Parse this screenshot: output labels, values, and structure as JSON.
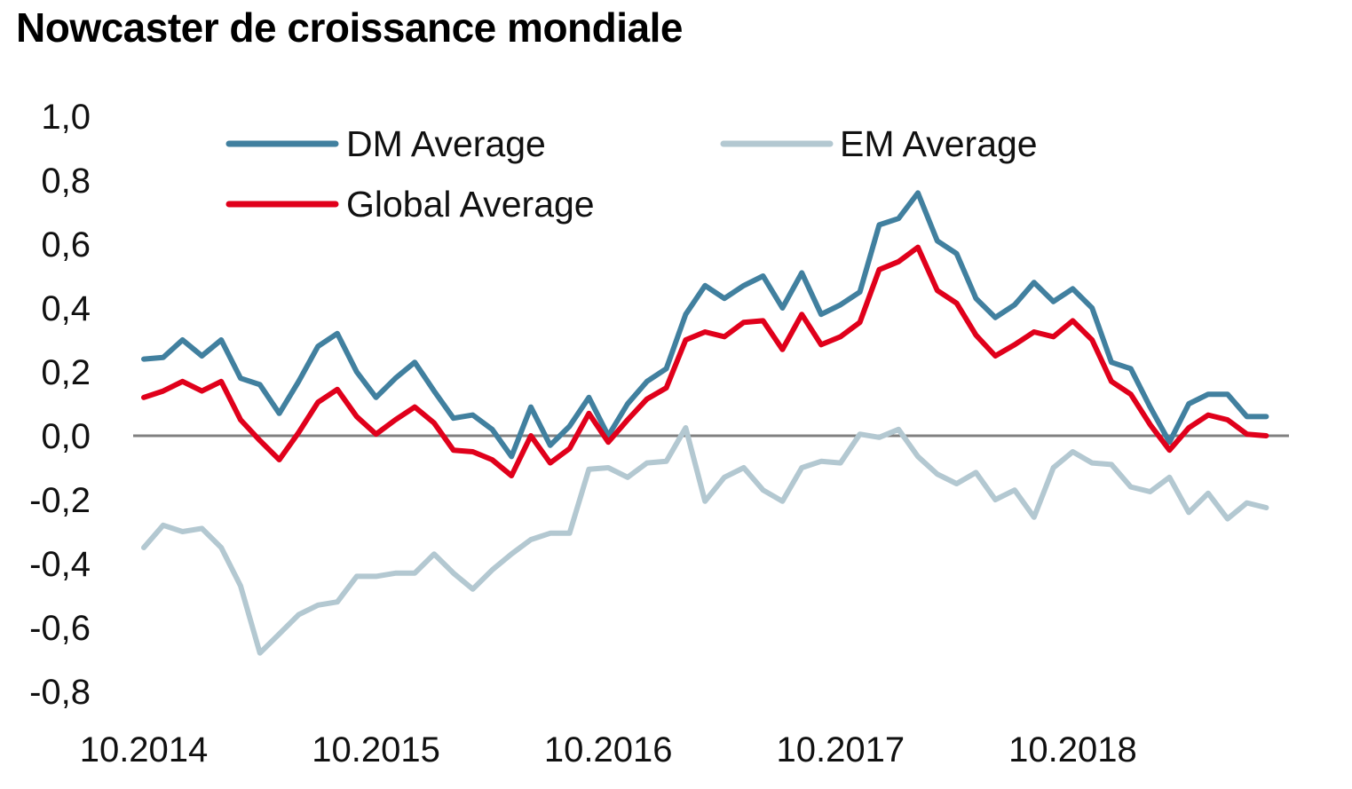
{
  "chart_data": {
    "type": "line",
    "title": "Nowcaster de croissance mondiale",
    "xlabel": "",
    "ylabel": "",
    "ylim": [
      -0.8,
      1.0
    ],
    "y_ticks": [
      "1,0",
      "0,8",
      "0,6",
      "0,4",
      "0,2",
      "0,0",
      "-0,2",
      "-0,4",
      "-0,6",
      "-0,8"
    ],
    "y_tick_values": [
      1.0,
      0.8,
      0.6,
      0.4,
      0.2,
      0.0,
      -0.2,
      -0.4,
      -0.6,
      -0.8
    ],
    "x_tick_labels": [
      "10.2014",
      "10.2015",
      "10.2016",
      "10.2017",
      "10.2018"
    ],
    "x_tick_months": [
      0,
      12,
      24,
      36,
      48
    ],
    "x_start": "10.2014",
    "grid": false,
    "zero_line": true,
    "legend_position": "top",
    "colors": {
      "dm": "#41809f",
      "em": "#b3c8d1",
      "global": "#e0001b",
      "zero_line": "#808080"
    },
    "series": [
      {
        "name": "DM Average",
        "color": "#41809f",
        "values": [
          0.24,
          0.245,
          0.3,
          0.25,
          0.3,
          0.18,
          0.16,
          0.07,
          0.17,
          0.28,
          0.32,
          0.2,
          0.12,
          0.18,
          0.23,
          0.14,
          0.055,
          0.065,
          0.02,
          -0.065,
          0.09,
          -0.03,
          0.03,
          0.12,
          0.0,
          0.1,
          0.17,
          0.21,
          0.38,
          0.47,
          0.43,
          0.47,
          0.5,
          0.4,
          0.51,
          0.38,
          0.41,
          0.45,
          0.66,
          0.68,
          0.76,
          0.61,
          0.57,
          0.43,
          0.37,
          0.41,
          0.48,
          0.42,
          0.46,
          0.4,
          0.23,
          0.21,
          0.09,
          -0.02,
          0.1,
          0.13,
          0.13,
          0.06,
          0.06
        ]
      },
      {
        "name": "EM Average",
        "color": "#b3c8d1",
        "values": [
          -0.35,
          -0.28,
          -0.3,
          -0.29,
          -0.35,
          -0.47,
          -0.68,
          -0.62,
          -0.56,
          -0.53,
          -0.52,
          -0.44,
          -0.44,
          -0.43,
          -0.43,
          -0.37,
          -0.43,
          -0.48,
          -0.42,
          -0.37,
          -0.325,
          -0.305,
          -0.305,
          -0.105,
          -0.1,
          -0.13,
          -0.085,
          -0.08,
          0.025,
          -0.205,
          -0.13,
          -0.1,
          -0.17,
          -0.205,
          -0.1,
          -0.08,
          -0.085,
          0.005,
          -0.005,
          0.02,
          -0.065,
          -0.12,
          -0.15,
          -0.115,
          -0.2,
          -0.17,
          -0.255,
          -0.1,
          -0.05,
          -0.085,
          -0.09,
          -0.16,
          -0.175,
          -0.13,
          -0.24,
          -0.18,
          -0.26,
          -0.21,
          -0.225
        ]
      },
      {
        "name": "Global Average",
        "color": "#e0001b",
        "values": [
          0.12,
          0.14,
          0.17,
          0.14,
          0.17,
          0.05,
          -0.015,
          -0.075,
          0.01,
          0.105,
          0.145,
          0.06,
          0.005,
          0.05,
          0.09,
          0.04,
          -0.045,
          -0.05,
          -0.075,
          -0.125,
          0.0,
          -0.085,
          -0.04,
          0.07,
          -0.02,
          0.05,
          0.115,
          0.15,
          0.3,
          0.325,
          0.31,
          0.355,
          0.36,
          0.27,
          0.38,
          0.285,
          0.31,
          0.355,
          0.52,
          0.545,
          0.59,
          0.455,
          0.415,
          0.315,
          0.25,
          0.285,
          0.325,
          0.31,
          0.36,
          0.3,
          0.17,
          0.13,
          0.035,
          -0.045,
          0.025,
          0.065,
          0.05,
          0.005,
          0.0
        ]
      }
    ]
  }
}
